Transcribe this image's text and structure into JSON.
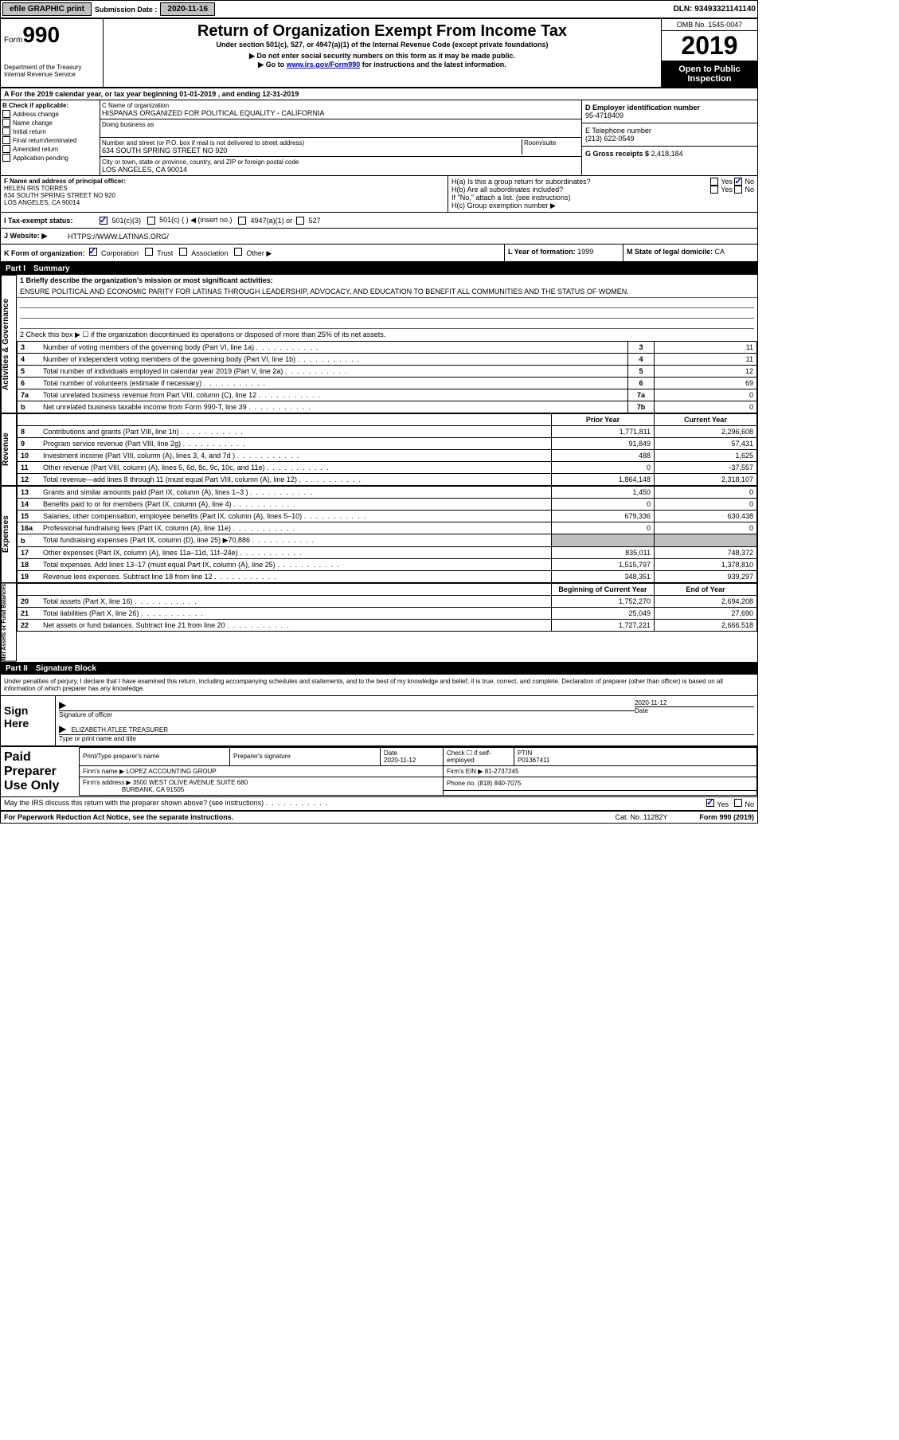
{
  "top_bar": {
    "efile": "efile GRAPHIC print",
    "sub_label": "Submission Date :",
    "sub_date": "2020-11-16",
    "dln_label": "DLN:",
    "dln": "93493321141140"
  },
  "header": {
    "form_label": "Form",
    "form_num": "990",
    "dept": "Department of the Treasury\nInternal Revenue Service",
    "title": "Return of Organization Exempt From Income Tax",
    "under": "Under section 501(c), 527, or 4947(a)(1) of the Internal Revenue Code (except private foundations)",
    "note1": "▶ Do not enter social security numbers on this form as it may be made public.",
    "note2_pre": "▶ Go to ",
    "note2_link": "www.irs.gov/Form990",
    "note2_post": " for instructions and the latest information.",
    "omb": "OMB No. 1545-0047",
    "year": "2019",
    "public": "Open to Public Inspection"
  },
  "row_a": "A For the 2019 calendar year, or tax year beginning 01-01-2019    , and ending 12-31-2019",
  "box_b": {
    "label": "B Check if applicable:",
    "items": [
      "Address change",
      "Name change",
      "Initial return",
      "Final return/terminated",
      "Amended return",
      "Application pending"
    ]
  },
  "box_c": {
    "name_label": "C Name of organization",
    "name": "HISPANAS ORGANIZED FOR POLITICAL EQUALITY - CALIFORNIA",
    "dba_label": "Doing business as",
    "addr_label": "Number and street (or P.O. box if mail is not delivered to street address)",
    "room_label": "Room/suite",
    "addr": "634 SOUTH SPRING STREET NO 920",
    "city_label": "City or town, state or province, country, and ZIP or foreign postal code",
    "city": "LOS ANGELES, CA  90014"
  },
  "box_d": {
    "label": "D Employer identification number",
    "value": "95-4718409",
    "tel_label": "E Telephone number",
    "tel": "(213) 622-0549",
    "gross_label": "G Gross receipts $",
    "gross": "2,418,184"
  },
  "box_f": {
    "label": "F Name and address of principal officer:",
    "name": "HELEN IRIS TORRES",
    "addr": "634 SOUTH SPRING STREET NO 920\nLOS ANGELES, CA  90014"
  },
  "box_h": {
    "ha": "H(a)  Is this a group return for subordinates?",
    "hb": "H(b)  Are all subordinates included?",
    "hb_note": "If \"No,\" attach a list. (see instructions)",
    "hc": "H(c)  Group exemption number ▶"
  },
  "tax_exempt": {
    "label": "I    Tax-exempt status:",
    "opt1": "501(c)(3)",
    "opt2": "501(c) (  ) ◀ (insert no.)",
    "opt3": "4947(a)(1) or",
    "opt4": "527"
  },
  "website": {
    "label": "J   Website: ▶",
    "value": "HTTPS://WWW.LATINAS.ORG/"
  },
  "k_row": {
    "k_label": "K Form of organization:",
    "k_opts": [
      "Corporation",
      "Trust",
      "Association",
      "Other ▶"
    ],
    "l_label": "L Year of formation:",
    "l_val": "1999",
    "m_label": "M State of legal domicile:",
    "m_val": "CA"
  },
  "part1": {
    "num": "Part I",
    "title": "Summary",
    "line1_label": "1  Briefly describe the organization's mission or most significant activities:",
    "line1_text": "ENSURE POLITICAL AND ECONOMIC PARITY FOR LATINAS THROUGH LEADERSHIP, ADVOCACY, AND EDUCATION TO BENEFIT ALL COMMUNITIES AND THE STATUS OF WOMEN.",
    "line2": "2    Check this box ▶ ☐  if the organization discontinued its operations or disposed of more than 25% of its net assets."
  },
  "gov_lines": [
    {
      "n": "3",
      "d": "Number of voting members of the governing body (Part VI, line 1a)",
      "box": "3",
      "v": "11"
    },
    {
      "n": "4",
      "d": "Number of independent voting members of the governing body (Part VI, line 1b)",
      "box": "4",
      "v": "11"
    },
    {
      "n": "5",
      "d": "Total number of individuals employed in calendar year 2019 (Part V, line 2a)",
      "box": "5",
      "v": "12"
    },
    {
      "n": "6",
      "d": "Total number of volunteers (estimate if necessary)",
      "box": "6",
      "v": "69"
    },
    {
      "n": "7a",
      "d": "Total unrelated business revenue from Part VIII, column (C), line 12",
      "box": "7a",
      "v": "0"
    },
    {
      "n": "b",
      "d": "Net unrelated business taxable income from Form 990-T, line 39",
      "box": "7b",
      "v": "0"
    }
  ],
  "col_headers": {
    "prior": "Prior Year",
    "current": "Current Year"
  },
  "revenue_lines": [
    {
      "n": "8",
      "d": "Contributions and grants (Part VIII, line 1h)",
      "p": "1,771,811",
      "c": "2,296,608"
    },
    {
      "n": "9",
      "d": "Program service revenue (Part VIII, line 2g)",
      "p": "91,849",
      "c": "57,431"
    },
    {
      "n": "10",
      "d": "Investment income (Part VIII, column (A), lines 3, 4, and 7d )",
      "p": "488",
      "c": "1,625"
    },
    {
      "n": "11",
      "d": "Other revenue (Part VIII, column (A), lines 5, 6d, 8c, 9c, 10c, and 11e)",
      "p": "0",
      "c": "-37,557"
    },
    {
      "n": "12",
      "d": "Total revenue—add lines 8 through 11 (must equal Part VIII, column (A), line 12)",
      "p": "1,864,148",
      "c": "2,318,107"
    }
  ],
  "expense_lines": [
    {
      "n": "13",
      "d": "Grants and similar amounts paid (Part IX, column (A), lines 1–3 )",
      "p": "1,450",
      "c": "0"
    },
    {
      "n": "14",
      "d": "Benefits paid to or for members (Part IX, column (A), line 4)",
      "p": "0",
      "c": "0"
    },
    {
      "n": "15",
      "d": "Salaries, other compensation, employee benefits (Part IX, column (A), lines 5–10)",
      "p": "679,336",
      "c": "630,438"
    },
    {
      "n": "16a",
      "d": "Professional fundraising fees (Part IX, column (A), line 11e)",
      "p": "0",
      "c": "0"
    },
    {
      "n": "b",
      "d": "Total fundraising expenses (Part IX, column (D), line 25) ▶70,886",
      "p": "",
      "c": "",
      "grey": true
    },
    {
      "n": "17",
      "d": "Other expenses (Part IX, column (A), lines 11a–11d, 11f–24e)",
      "p": "835,011",
      "c": "748,372"
    },
    {
      "n": "18",
      "d": "Total expenses. Add lines 13–17 (must equal Part IX, column (A), line 25)",
      "p": "1,515,797",
      "c": "1,378,810"
    },
    {
      "n": "19",
      "d": "Revenue less expenses. Subtract line 18 from line 12",
      "p": "348,351",
      "c": "939,297"
    }
  ],
  "na_headers": {
    "begin": "Beginning of Current Year",
    "end": "End of Year"
  },
  "na_lines": [
    {
      "n": "20",
      "d": "Total assets (Part X, line 16)",
      "p": "1,752,270",
      "c": "2,694,208"
    },
    {
      "n": "21",
      "d": "Total liabilities (Part X, line 26)",
      "p": "25,049",
      "c": "27,690"
    },
    {
      "n": "22",
      "d": "Net assets or fund balances. Subtract line 21 from line 20",
      "p": "1,727,221",
      "c": "2,666,518"
    }
  ],
  "side_labels": {
    "gov": "Activities & Governance",
    "rev": "Revenue",
    "exp": "Expenses",
    "na": "Net Assets or Fund Balances"
  },
  "part2": {
    "num": "Part II",
    "title": "Signature Block"
  },
  "penalties": "Under penalties of perjury, I declare that I have examined this return, including accompanying schedules and statements, and to the best of my knowledge and belief, it is true, correct, and complete. Declaration of preparer (other than officer) is based on all information of which preparer has any knowledge.",
  "sign": {
    "left": "Sign Here",
    "sig_label": "Signature of officer",
    "date": "2020-11-12",
    "date_label": "Date",
    "name": "ELIZABETH ATLEE  TREASURER",
    "name_label": "Type or print name and title"
  },
  "prep": {
    "left": "Paid Preparer Use Only",
    "headers": [
      "Print/Type preparer's name",
      "Preparer's signature",
      "Date",
      "Check ☐ if self-employed",
      "PTIN"
    ],
    "date": "2020-11-12",
    "ptin": "P01367411",
    "firm_label": "Firm's name      ▶",
    "firm": "LOPEZ ACCOUNTING GROUP",
    "ein_label": "Firm's EIN ▶",
    "ein": "81-2737245",
    "addr_label": "Firm's address ▶",
    "addr1": "3500 WEST OLIVE AVENUE SUITE 680",
    "addr2": "BURBANK, CA  91505",
    "phone_label": "Phone no.",
    "phone": "(818) 840-7075"
  },
  "discuss": "May the IRS discuss this return with the preparer shown above? (see instructions)",
  "yes": "Yes",
  "no": "No",
  "footer": {
    "left": "For Paperwork Reduction Act Notice, see the separate instructions.",
    "cat": "Cat. No. 11282Y",
    "right": "Form 990 (2019)"
  }
}
